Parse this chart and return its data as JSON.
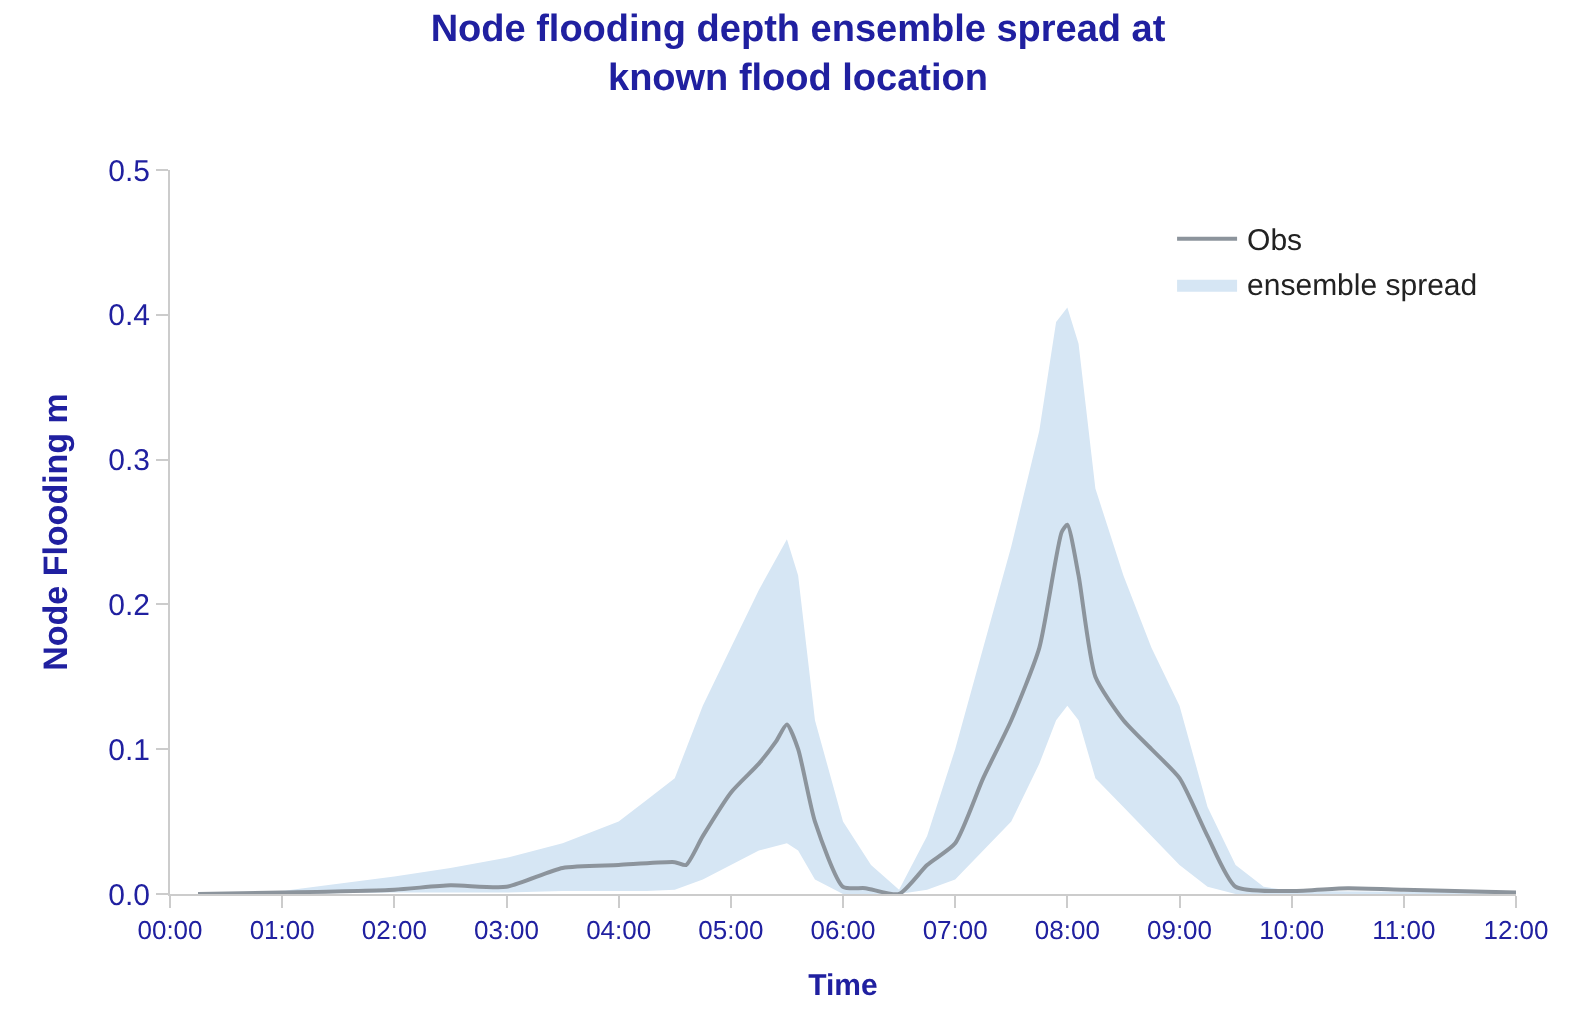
{
  "chart_data": {
    "type": "line",
    "title": "Node flooding depth ensemble spread at\nknown flood location",
    "xlabel": "Time",
    "ylabel": "Node Flooding m",
    "series": [
      {
        "name": "ensemble spread",
        "type": "area",
        "color": "#d6e6f4",
        "x": [
          0.25,
          1,
          2,
          2.5,
          3,
          3.5,
          4,
          4.25,
          4.5,
          4.75,
          5,
          5.25,
          5.5,
          5.6,
          5.75,
          6,
          6.25,
          6.5,
          6.75,
          7,
          7.25,
          7.5,
          7.75,
          7.9,
          8,
          8.1,
          8.25,
          8.5,
          8.75,
          9,
          9.25,
          9.5,
          9.75,
          10,
          12
        ],
        "values": [
          null,
          null,
          null,
          null,
          null,
          null,
          null,
          null,
          null,
          null,
          null,
          null,
          null,
          null,
          null,
          null,
          null,
          null,
          null,
          null,
          null,
          null,
          null,
          null,
          null,
          null,
          null,
          null,
          null,
          null,
          null,
          null,
          null,
          null,
          null
        ],
        "lower": [
          0,
          0,
          0.001,
          0.001,
          0.001,
          0.002,
          0.002,
          0.002,
          0.003,
          0.01,
          0.02,
          0.03,
          0.035,
          0.03,
          0.01,
          0,
          0,
          0,
          0.003,
          0.01,
          0.03,
          0.05,
          0.09,
          0.12,
          0.13,
          0.12,
          0.08,
          0.06,
          0.04,
          0.02,
          0.005,
          0,
          0,
          0,
          0
        ],
        "upper": [
          0,
          0.002,
          0.012,
          0.018,
          0.025,
          0.035,
          0.05,
          0.065,
          0.08,
          0.13,
          0.17,
          0.21,
          0.245,
          0.22,
          0.12,
          0.05,
          0.02,
          0.003,
          0.04,
          0.1,
          0.17,
          0.24,
          0.32,
          0.395,
          0.405,
          0.38,
          0.28,
          0.22,
          0.17,
          0.13,
          0.06,
          0.02,
          0.005,
          0.002,
          0.001
        ]
      },
      {
        "name": "Obs",
        "color": "#8c949c",
        "x": [
          0.25,
          1,
          2,
          2.5,
          3,
          3.5,
          4,
          4.5,
          4.6,
          4.75,
          5,
          5.25,
          5.4,
          5.5,
          5.6,
          5.75,
          6,
          6.2,
          6.5,
          6.75,
          7,
          7.25,
          7.5,
          7.75,
          7.95,
          8,
          8.1,
          8.25,
          8.5,
          8.75,
          9,
          9.25,
          9.5,
          10,
          10.5,
          11,
          12
        ],
        "values": [
          0,
          0.001,
          0.003,
          0.006,
          0.005,
          0.018,
          0.02,
          0.022,
          0.02,
          0.04,
          0.07,
          0.09,
          0.105,
          0.117,
          0.1,
          0.05,
          0.005,
          0.004,
          0,
          0.02,
          0.035,
          0.08,
          0.12,
          0.17,
          0.25,
          0.255,
          0.22,
          0.15,
          0.12,
          0.1,
          0.08,
          0.04,
          0.005,
          0.002,
          0.004,
          0.003,
          0.001
        ]
      }
    ],
    "xlim": [
      0,
      12
    ],
    "xticks": [
      {
        "value": 0,
        "label": "00:00"
      },
      {
        "value": 1,
        "label": "01:00"
      },
      {
        "value": 2,
        "label": "02:00"
      },
      {
        "value": 3,
        "label": "03:00"
      },
      {
        "value": 4,
        "label": "04:00"
      },
      {
        "value": 5,
        "label": "05:00"
      },
      {
        "value": 6,
        "label": "06:00"
      },
      {
        "value": 7,
        "label": "07:00"
      },
      {
        "value": 8,
        "label": "08:00"
      },
      {
        "value": 9,
        "label": "09:00"
      },
      {
        "value": 10,
        "label": "10:00"
      },
      {
        "value": 11,
        "label": "11:00"
      },
      {
        "value": 12,
        "label": "12:00"
      }
    ],
    "ylim": [
      0,
      0.5
    ],
    "yticks": [
      {
        "value": 0,
        "label": "0.0"
      },
      0.1,
      0.2,
      0.3,
      0.4,
      0.5
    ],
    "legend": "top right",
    "marker": "none",
    "line_style": "solid"
  }
}
